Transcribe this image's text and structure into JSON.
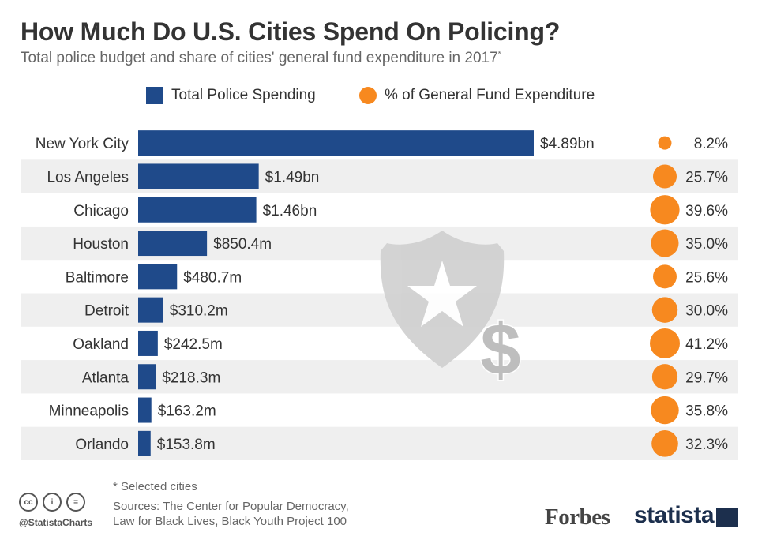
{
  "title": "How Much Do U.S. Cities Spend On Policing?",
  "subtitle": "Total police budget and share of cities' general fund expenditure in 2017",
  "subtitle_mark": "*",
  "legend": {
    "bar_label": "Total Police Spending",
    "dot_label": "% of General Fund Expenditure"
  },
  "colors": {
    "bar": "#1f4a8a",
    "dot": "#f7891f",
    "stripe": "#efefef",
    "shield": "#cfcfcf"
  },
  "chart_data": {
    "type": "bar",
    "orientation": "horizontal",
    "categories": [
      "New York City",
      "Los Angeles",
      "Chicago",
      "Houston",
      "Baltimore",
      "Detroit",
      "Oakland",
      "Atlanta",
      "Minneapolis",
      "Orlando"
    ],
    "series": [
      {
        "name": "Total Police Spending",
        "unit": "million USD",
        "values": [
          4890,
          1490,
          1460,
          850.4,
          480.7,
          310.2,
          242.5,
          218.3,
          163.2,
          153.8
        ],
        "labels": [
          "$4.89bn",
          "$1.49bn",
          "$1.46bn",
          "$850.4m",
          "$480.7m",
          "$310.2m",
          "$242.5m",
          "$218.3m",
          "$163.2m",
          "$153.8m"
        ]
      },
      {
        "name": "% of General Fund Expenditure",
        "unit": "percent",
        "values": [
          8.2,
          25.7,
          39.6,
          35.0,
          25.6,
          30.0,
          41.2,
          29.7,
          35.8,
          32.3
        ],
        "labels": [
          "8.2%",
          "25.7%",
          "39.6%",
          "35.0%",
          "25.6%",
          "30.0%",
          "41.2%",
          "29.7%",
          "35.8%",
          "32.3%"
        ]
      }
    ],
    "grid": false,
    "legend_position": "top-center"
  },
  "footer": {
    "footnote": "* Selected cities",
    "sources_line1": "Sources: The Center for Popular Democracy,",
    "sources_line2": "Law for Black Lives, Black Youth Project 100",
    "handle": "@StatistaCharts",
    "cc_icons": [
      "cc",
      "i",
      "="
    ],
    "forbes": "Forbes",
    "statista": "statista"
  }
}
